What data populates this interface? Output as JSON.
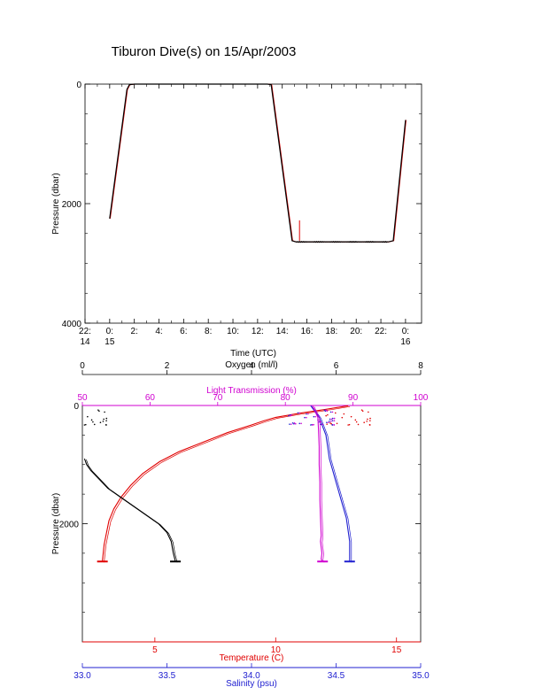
{
  "title": "Tiburon Dive(s) on 15/Apr/2003",
  "colors": {
    "black": "#000000",
    "red": "#e00000",
    "magenta": "#d000d0",
    "blue": "#2020d0"
  },
  "chart_data": [
    {
      "type": "line",
      "title": "Tiburon Dive(s) on 15/Apr/2003",
      "xlabel": "Time (UTC)",
      "ylabel": "Pressure (dbar)",
      "ylim": [
        4000,
        0
      ],
      "y_ticks": [
        "0",
        "2000",
        "4000"
      ],
      "x_ticks": [
        {
          "line1": "22:",
          "line2": "14"
        },
        {
          "line1": "0:",
          "line2": "15"
        },
        {
          "line1": "2:",
          "line2": ""
        },
        {
          "line1": "4:",
          "line2": ""
        },
        {
          "line1": "6:",
          "line2": ""
        },
        {
          "line1": "8:",
          "line2": ""
        },
        {
          "line1": "10:",
          "line2": ""
        },
        {
          "line1": "12:",
          "line2": ""
        },
        {
          "line1": "14:",
          "line2": ""
        },
        {
          "line1": "16:",
          "line2": ""
        },
        {
          "line1": "18:",
          "line2": ""
        },
        {
          "line1": "20:",
          "line2": ""
        },
        {
          "line1": "22:",
          "line2": ""
        },
        {
          "line1": "0:",
          "line2": "16"
        }
      ],
      "x_hours": [
        -2,
        0,
        2,
        4,
        6,
        8,
        10,
        12,
        14,
        16,
        18,
        20,
        22,
        24
      ],
      "xlim": [
        -2.0,
        25.3
      ],
      "series": [
        {
          "color": "black",
          "hours": [
            0.0,
            1.4,
            1.6,
            2.0,
            12.8,
            13.1,
            14.8,
            15.1,
            22.6,
            23.0,
            24.0
          ],
          "pressure": [
            2250,
            90,
            10,
            0,
            0,
            10,
            2620,
            2640,
            2640,
            2620,
            600
          ]
        }
      ],
      "spike": {
        "hours": 15.4,
        "pressure_top": 2280,
        "pressure_bottom": 2620
      }
    },
    {
      "type": "line",
      "ylabel": "Pressure (dbar)",
      "ylim": [
        4000,
        0
      ],
      "y_ticks": [
        "0",
        "2000"
      ],
      "axes": {
        "oxygen": {
          "label": "Oxygen (ml/l)",
          "range": [
            0,
            8
          ],
          "ticks": [
            "0",
            "2",
            "4",
            "6",
            "8"
          ]
        },
        "light": {
          "label": "Light Transmission (%)",
          "range": [
            50,
            100
          ],
          "ticks": [
            "50",
            "60",
            "70",
            "80",
            "90",
            "100"
          ]
        },
        "temperature": {
          "label": "Temperature (C)",
          "range": [
            2,
            16
          ],
          "ticks": [
            "5",
            "10",
            "15"
          ]
        },
        "salinity": {
          "label": "Salinity (psu)",
          "range": [
            33.0,
            35.0
          ],
          "ticks": [
            "33.0",
            "33.5",
            "34.0",
            "34.5",
            "35.0"
          ]
        }
      },
      "series": [
        {
          "name": "Temperature (C)",
          "color": "red",
          "x": [
            13.0,
            12.0,
            11.0,
            10.0,
            9.5,
            9.0,
            8.0,
            7.0,
            6.0,
            5.2,
            4.5,
            4.0,
            3.6,
            3.3,
            3.1,
            3.0,
            2.9,
            2.85,
            2.83
          ],
          "pressure": [
            5,
            70,
            130,
            200,
            260,
            330,
            460,
            620,
            780,
            950,
            1150,
            1350,
            1550,
            1750,
            1950,
            2150,
            2350,
            2550,
            2640
          ]
        },
        {
          "name": "Salinity (psu)",
          "color": "blue",
          "x": [
            34.35,
            34.4,
            34.42,
            34.44,
            34.45,
            34.46,
            34.48,
            34.5,
            34.52,
            34.54,
            34.56,
            34.57,
            34.58,
            34.58,
            34.58
          ],
          "pressure": [
            5,
            200,
            350,
            500,
            700,
            900,
            1100,
            1300,
            1500,
            1700,
            1900,
            2100,
            2300,
            2500,
            2640
          ]
        },
        {
          "name": "Light Transmission (%)",
          "color": "magenta",
          "x": [
            84.0,
            84.8,
            84.9,
            85.0,
            85.0,
            85.1,
            85.1,
            85.2,
            85.3,
            85.2,
            85.4,
            85.3,
            85.5
          ],
          "pressure": [
            5,
            200,
            400,
            700,
            1000,
            1300,
            1600,
            1900,
            2200,
            2300,
            2500,
            2600,
            2640
          ]
        },
        {
          "name": "Oxygen (ml/l)",
          "color": "black",
          "x": [
            0.05,
            0.1,
            0.2,
            0.4,
            0.6,
            0.9,
            1.2,
            1.5,
            1.8,
            2.0,
            2.1,
            2.15,
            2.2
          ],
          "pressure": [
            900,
            1000,
            1100,
            1250,
            1400,
            1550,
            1700,
            1850,
            2000,
            2150,
            2300,
            2500,
            2640
          ]
        }
      ]
    }
  ]
}
